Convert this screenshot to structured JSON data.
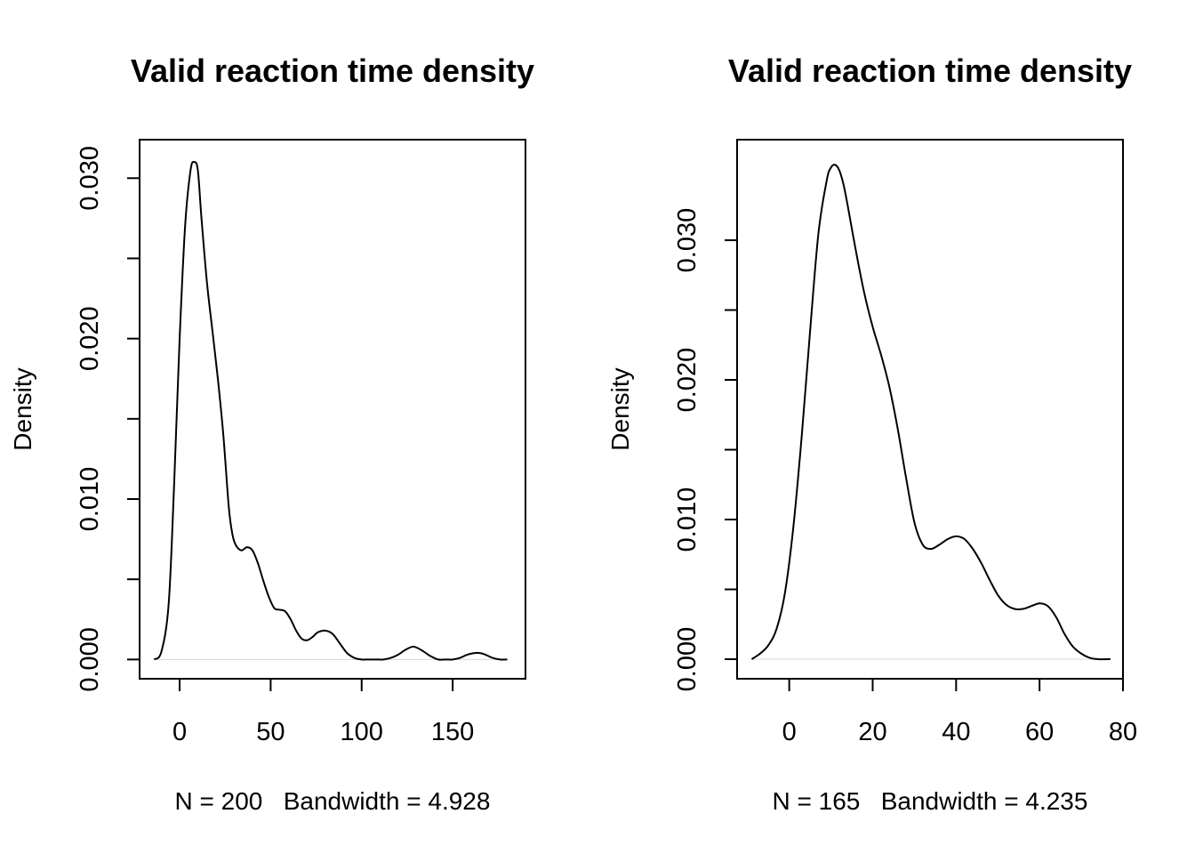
{
  "chart_data": [
    {
      "type": "line",
      "title": "Valid reaction time density",
      "xlabel": "N = 200   Bandwidth = 4.928",
      "ylabel": "Density",
      "xlim": [
        -22,
        190
      ],
      "ylim": [
        -0.0012,
        0.0324
      ],
      "x_ticks": [
        0,
        50,
        100,
        150
      ],
      "y_ticks": [
        0.0,
        0.005,
        0.01,
        0.015,
        0.02,
        0.025,
        0.03
      ],
      "y_tick_labels": [
        "0.000",
        "",
        "0.010",
        "",
        "0.020",
        "",
        "0.030"
      ],
      "series": [
        {
          "x": [
            -14,
            -10,
            -6,
            -3,
            0,
            3,
            6,
            8,
            10,
            12,
            15,
            18,
            21,
            24,
            27,
            29,
            31,
            34,
            37,
            40,
            43,
            46,
            49,
            52,
            55,
            58,
            61,
            64,
            67,
            70,
            73,
            76,
            80,
            84,
            88,
            92,
            96,
            100,
            104,
            108,
            112,
            116,
            120,
            124,
            128,
            131,
            134,
            138,
            142,
            146,
            150,
            154,
            158,
            162,
            165,
            168,
            172,
            176,
            180
          ],
          "y": [
            0.0,
            0.0005,
            0.0035,
            0.011,
            0.02,
            0.027,
            0.0305,
            0.031,
            0.0305,
            0.0275,
            0.0235,
            0.0205,
            0.0175,
            0.014,
            0.0095,
            0.0078,
            0.0071,
            0.0068,
            0.007,
            0.0068,
            0.006,
            0.0049,
            0.0039,
            0.0032,
            0.0031,
            0.003,
            0.0025,
            0.0018,
            0.0013,
            0.0012,
            0.0014,
            0.0017,
            0.0018,
            0.0016,
            0.001,
            0.0004,
            0.0001,
            0.0,
            0.0,
            0.0,
            0.0,
            0.0001,
            0.0003,
            0.0006,
            0.0008,
            0.0007,
            0.0005,
            0.0002,
            0.0,
            0.0,
            0.0,
            0.0001,
            0.0003,
            0.0004,
            0.0004,
            0.0003,
            0.0001,
            0.0,
            0.0
          ]
        }
      ]
    },
    {
      "type": "line",
      "title": "Valid reaction time density",
      "xlabel": "N = 165   Bandwidth = 4.235",
      "ylabel": "Density",
      "xlim": [
        -12.5,
        80
      ],
      "ylim": [
        -0.0014,
        0.0372
      ],
      "x_ticks": [
        0,
        20,
        40,
        60,
        80
      ],
      "y_ticks": [
        0.0,
        0.005,
        0.01,
        0.015,
        0.02,
        0.025,
        0.03
      ],
      "y_tick_labels": [
        "0.000",
        "",
        "0.010",
        "",
        "0.020",
        "",
        "0.030"
      ],
      "series": [
        {
          "x": [
            -9,
            -7,
            -5,
            -3,
            -1,
            1,
            3,
            5,
            7,
            9,
            10,
            11,
            12,
            13,
            14,
            16,
            18,
            20,
            22,
            24,
            26,
            28,
            30,
            32,
            34,
            36,
            38,
            40,
            42,
            44,
            46,
            48,
            50,
            52,
            54,
            56,
            58,
            60,
            62,
            64,
            66,
            68,
            70,
            72,
            74,
            77
          ],
          "y": [
            0.0,
            0.0004,
            0.001,
            0.0022,
            0.0048,
            0.0095,
            0.016,
            0.0235,
            0.0305,
            0.0343,
            0.0352,
            0.0354,
            0.035,
            0.034,
            0.0325,
            0.0292,
            0.0262,
            0.0238,
            0.0218,
            0.0195,
            0.0165,
            0.013,
            0.0098,
            0.0082,
            0.0079,
            0.0082,
            0.0086,
            0.0088,
            0.0086,
            0.0079,
            0.0069,
            0.0057,
            0.0046,
            0.0039,
            0.0036,
            0.0036,
            0.0038,
            0.004,
            0.0038,
            0.003,
            0.0018,
            0.0009,
            0.0004,
            0.0001,
            0.0,
            0.0
          ]
        }
      ]
    }
  ]
}
